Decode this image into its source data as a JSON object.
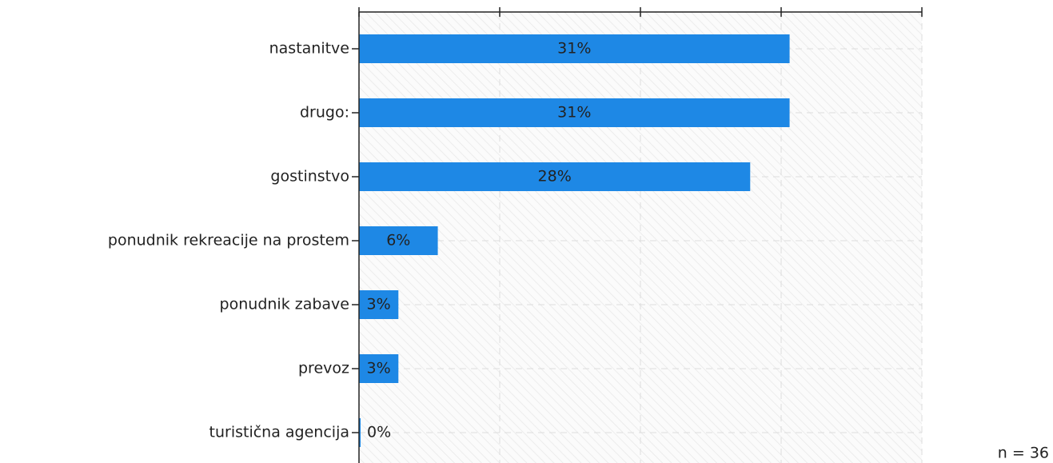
{
  "chart_data": {
    "type": "bar",
    "orientation": "horizontal",
    "categories": [
      "nastanitve",
      "drugo:",
      "gostinstvo",
      "ponudnik rekreacije na prostem",
      "ponudnik zabave",
      "prevoz",
      "turistična agencija"
    ],
    "values": [
      30.6,
      30.6,
      27.8,
      5.6,
      2.8,
      2.8,
      0
    ],
    "value_labels": [
      "31%",
      "31%",
      "28%",
      "6%",
      "3%",
      "3%",
      "0%"
    ],
    "color": "#1e88e5",
    "xlim": [
      0,
      40
    ],
    "xticks": [
      0,
      10,
      20,
      30,
      40
    ],
    "grid": true,
    "note": "n = 36"
  }
}
